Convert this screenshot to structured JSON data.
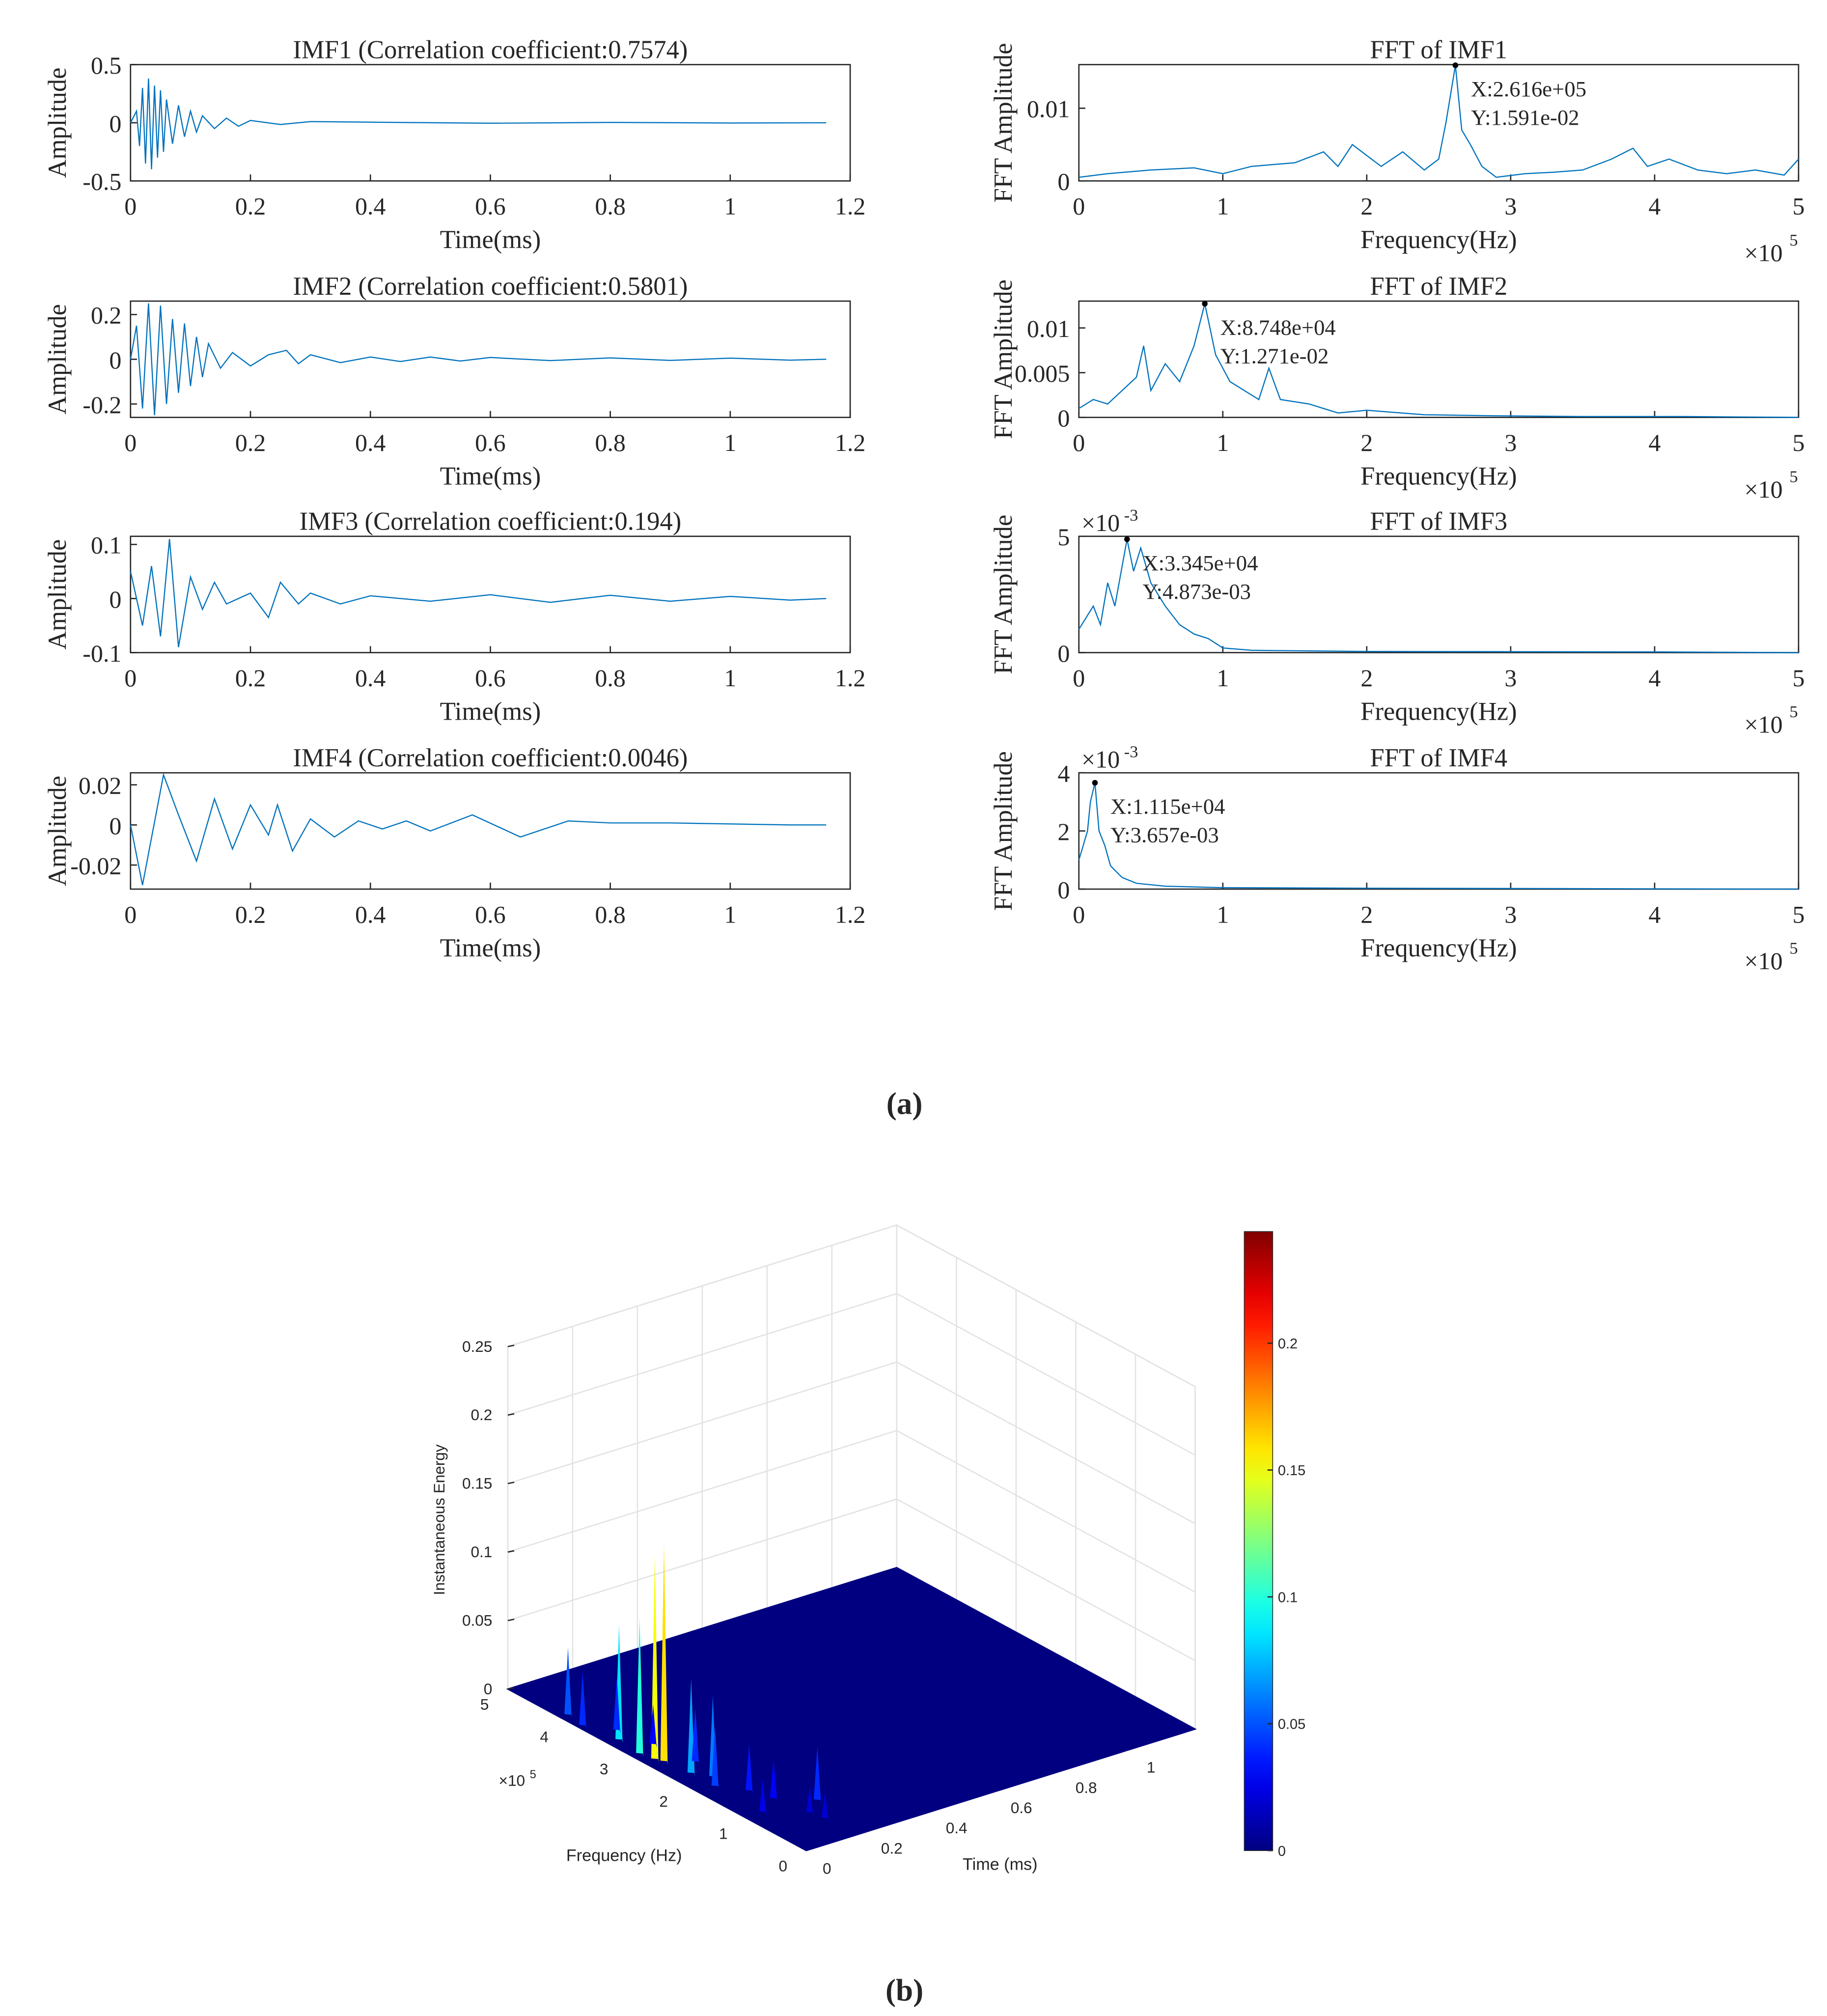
{
  "panel_labels": [
    "(a)",
    "(b)"
  ],
  "chart_data": [
    {
      "type": "line",
      "title": "IMF1 (Correlation coefficient:0.7574)",
      "xlabel": "Time(ms)",
      "ylabel": "Amplitude",
      "color": "#0072bd",
      "x": [
        0,
        0.01,
        0.015,
        0.02,
        0.025,
        0.03,
        0.035,
        0.04,
        0.045,
        0.05,
        0.055,
        0.06,
        0.07,
        0.08,
        0.09,
        0.1,
        0.11,
        0.12,
        0.14,
        0.16,
        0.18,
        0.2,
        0.25,
        0.3,
        0.4,
        0.6,
        0.8,
        1.0,
        1.16
      ],
      "values": [
        0,
        0.1,
        -0.2,
        0.3,
        -0.35,
        0.38,
        -0.4,
        0.32,
        -0.3,
        0.28,
        -0.25,
        0.2,
        -0.18,
        0.15,
        -0.12,
        0.1,
        -0.08,
        0.06,
        -0.05,
        0.04,
        -0.03,
        0.02,
        -0.015,
        0.01,
        0.005,
        -0.004,
        0.003,
        -0.002,
        0
      ],
      "xlim": [
        0,
        1.2
      ],
      "ylim": [
        -0.5,
        0.5
      ],
      "xticks": [
        0,
        0.2,
        0.4,
        0.6,
        0.8,
        1,
        1.2
      ],
      "yticks": [
        -0.5,
        0,
        0.5
      ]
    },
    {
      "type": "line",
      "title": "IMF2 (Correlation coefficient:0.5801)",
      "xlabel": "Time(ms)",
      "ylabel": "Amplitude",
      "color": "#0072bd",
      "x": [
        0,
        0.01,
        0.02,
        0.03,
        0.04,
        0.05,
        0.06,
        0.07,
        0.08,
        0.09,
        0.1,
        0.11,
        0.12,
        0.13,
        0.15,
        0.17,
        0.2,
        0.23,
        0.26,
        0.28,
        0.3,
        0.35,
        0.4,
        0.45,
        0.5,
        0.55,
        0.6,
        0.7,
        0.8,
        0.9,
        1.0,
        1.1,
        1.16
      ],
      "values": [
        0,
        0.15,
        -0.22,
        0.25,
        -0.25,
        0.24,
        -0.2,
        0.18,
        -0.15,
        0.16,
        -0.12,
        0.1,
        -0.08,
        0.07,
        -0.04,
        0.03,
        -0.03,
        0.02,
        0.04,
        -0.02,
        0.02,
        -0.015,
        0.01,
        -0.01,
        0.01,
        -0.008,
        0.008,
        -0.006,
        0.006,
        -0.005,
        0.005,
        -0.004,
        0
      ],
      "xlim": [
        0,
        1.2
      ],
      "ylim": [
        -0.26,
        0.26
      ],
      "xticks": [
        0,
        0.2,
        0.4,
        0.6,
        0.8,
        1,
        1.2
      ],
      "yticks": [
        -0.2,
        0,
        0.2
      ]
    },
    {
      "type": "line",
      "title": "IMF3 (Correlation coefficient:0.194)",
      "xlabel": "Time(ms)",
      "ylabel": "Amplitude",
      "color": "#0072bd",
      "x": [
        0,
        0.02,
        0.035,
        0.05,
        0.065,
        0.08,
        0.1,
        0.12,
        0.14,
        0.16,
        0.2,
        0.23,
        0.25,
        0.28,
        0.3,
        0.35,
        0.4,
        0.5,
        0.6,
        0.7,
        0.8,
        0.9,
        1.0,
        1.1,
        1.16
      ],
      "values": [
        0.05,
        -0.05,
        0.06,
        -0.07,
        0.11,
        -0.09,
        0.04,
        -0.02,
        0.03,
        -0.01,
        0.01,
        -0.035,
        0.03,
        -0.01,
        0.01,
        -0.01,
        0.005,
        -0.005,
        0.007,
        -0.007,
        0.006,
        -0.005,
        0.004,
        -0.003,
        0
      ],
      "xlim": [
        0,
        1.2
      ],
      "ylim": [
        -0.1,
        0.115
      ],
      "xticks": [
        0,
        0.2,
        0.4,
        0.6,
        0.8,
        1,
        1.2
      ],
      "yticks": [
        -0.1,
        0,
        0.1
      ]
    },
    {
      "type": "line",
      "title": "IMF4 (Correlation coefficient:0.0046)",
      "xlabel": "Time(ms)",
      "ylabel": "Amplitude",
      "color": "#0072bd",
      "x": [
        0,
        0.02,
        0.055,
        0.08,
        0.11,
        0.14,
        0.17,
        0.2,
        0.23,
        0.245,
        0.27,
        0.3,
        0.34,
        0.38,
        0.42,
        0.46,
        0.5,
        0.57,
        0.65,
        0.73,
        0.8,
        0.9,
        1.0,
        1.1,
        1.16
      ],
      "values": [
        0,
        -0.03,
        0.025,
        0.005,
        -0.018,
        0.013,
        -0.012,
        0.01,
        -0.005,
        0.01,
        -0.013,
        0.003,
        -0.006,
        0.002,
        -0.002,
        0.002,
        -0.003,
        0.005,
        -0.006,
        0.002,
        0.001,
        0.001,
        0.0005,
        0,
        0
      ],
      "xlim": [
        0,
        1.2
      ],
      "ylim": [
        -0.032,
        0.026
      ],
      "xticks": [
        0,
        0.2,
        0.4,
        0.6,
        0.8,
        1,
        1.2
      ],
      "yticks": [
        -0.02,
        0,
        0.02
      ]
    },
    {
      "type": "line",
      "title": "FFT of IMF1",
      "xlabel": "Frequency(Hz)",
      "ylabel": "FFT Amplitude",
      "color": "#0072bd",
      "x": [
        0,
        20000,
        50000,
        80000,
        100000,
        120000,
        150000,
        170000,
        180000,
        190000,
        210000,
        225000,
        240000,
        250000,
        255000,
        261600,
        266000,
        272000,
        280000,
        290000,
        310000,
        330000,
        350000,
        370000,
        385000,
        395000,
        410000,
        430000,
        450000,
        470000,
        490000,
        500000
      ],
      "values": [
        0.0005,
        0.001,
        0.0015,
        0.0018,
        0.001,
        0.002,
        0.0025,
        0.004,
        0.002,
        0.005,
        0.002,
        0.004,
        0.0015,
        0.003,
        0.008,
        0.01591,
        0.007,
        0.005,
        0.002,
        0.0005,
        0.001,
        0.0012,
        0.0015,
        0.003,
        0.0045,
        0.002,
        0.003,
        0.0015,
        0.001,
        0.0015,
        0.0008,
        0.003
      ],
      "xlim": [
        0,
        500000
      ],
      "ylim": [
        0,
        0.016
      ],
      "xticks": [
        0,
        {
          "value": 100000,
          "label": "1"
        },
        {
          "value": 200000,
          "label": "2"
        },
        {
          "value": 300000,
          "label": "3"
        },
        {
          "value": 400000,
          "label": "4"
        },
        {
          "value": 500000,
          "label": "5"
        }
      ],
      "yticks": [
        0,
        0.01
      ],
      "x_multiplier": {
        "base": "×10",
        "exponent": "5"
      },
      "annotations": [
        {
          "x": 261600,
          "y": 0.01591,
          "x_text": "X:2.616e+05",
          "y_text": "Y:1.591e-02"
        }
      ]
    },
    {
      "type": "line",
      "title": "FFT of IMF2",
      "xlabel": "Frequency(Hz)",
      "ylabel": "FFT Amplitude",
      "color": "#0072bd",
      "x": [
        0,
        10000,
        20000,
        30000,
        40000,
        45000,
        50000,
        60000,
        70000,
        80000,
        87480,
        95000,
        105000,
        115000,
        125000,
        132000,
        140000,
        160000,
        180000,
        200000,
        240000,
        280000,
        350000,
        420000,
        500000
      ],
      "values": [
        0.001,
        0.002,
        0.0015,
        0.003,
        0.0045,
        0.008,
        0.003,
        0.006,
        0.004,
        0.008,
        0.01271,
        0.007,
        0.004,
        0.003,
        0.002,
        0.0055,
        0.002,
        0.0015,
        0.0005,
        0.0008,
        0.0003,
        0.0002,
        0.0001,
        0.0001,
        0
      ],
      "xlim": [
        0,
        500000
      ],
      "ylim": [
        0,
        0.013
      ],
      "xticks": [
        0,
        {
          "value": 100000,
          "label": "1"
        },
        {
          "value": 200000,
          "label": "2"
        },
        {
          "value": 300000,
          "label": "3"
        },
        {
          "value": 400000,
          "label": "4"
        },
        {
          "value": 500000,
          "label": "5"
        }
      ],
      "yticks": [
        0,
        0.005,
        0.01
      ],
      "x_multiplier": {
        "base": "×10",
        "exponent": "5"
      },
      "annotations": [
        {
          "x": 87480,
          "y": 0.01271,
          "x_text": "X:8.748e+04",
          "y_text": "Y:1.271e-02"
        }
      ]
    },
    {
      "type": "line",
      "title": "FFT of IMF3",
      "xlabel": "Frequency(Hz)",
      "ylabel": "FFT Amplitude",
      "color": "#0072bd",
      "x": [
        0,
        5000,
        10000,
        15000,
        20000,
        25000,
        33450,
        38000,
        43000,
        50000,
        55000,
        60000,
        70000,
        80000,
        90000,
        100000,
        120000,
        150000,
        200000,
        300000,
        400000,
        500000
      ],
      "values": [
        0.001,
        0.0015,
        0.002,
        0.0012,
        0.003,
        0.002,
        0.004873,
        0.0035,
        0.0045,
        0.003,
        0.0025,
        0.002,
        0.0012,
        0.0008,
        0.0006,
        0.0002,
        0.0001,
        8e-05,
        5e-05,
        4e-05,
        3e-05,
        0
      ],
      "xlim": [
        0,
        500000
      ],
      "ylim": [
        0,
        0.005
      ],
      "xticks": [
        0,
        {
          "value": 100000,
          "label": "1"
        },
        {
          "value": 200000,
          "label": "2"
        },
        {
          "value": 300000,
          "label": "3"
        },
        {
          "value": 400000,
          "label": "4"
        },
        {
          "value": 500000,
          "label": "5"
        }
      ],
      "yticks": [
        0,
        {
          "value": 0.005,
          "label": "5"
        }
      ],
      "x_multiplier": {
        "base": "×10",
        "exponent": "5"
      },
      "y_multiplier": {
        "base": "×10",
        "exponent": "-3"
      },
      "annotations": [
        {
          "x": 33450,
          "y": 0.004873,
          "x_text": "X:3.345e+04",
          "y_text": "Y:4.873e-03"
        }
      ]
    },
    {
      "type": "line",
      "title": "FFT of IMF4",
      "xlabel": "Frequency(Hz)",
      "ylabel": "FFT Amplitude",
      "color": "#0072bd",
      "x": [
        0,
        3000,
        6000,
        8000,
        11150,
        14000,
        18000,
        22000,
        30000,
        40000,
        60000,
        100000,
        200000,
        500000
      ],
      "values": [
        0.001,
        0.0015,
        0.002,
        0.003,
        0.003657,
        0.002,
        0.0015,
        0.0008,
        0.0004,
        0.0002,
        0.0001,
        5e-05,
        3e-05,
        0
      ],
      "xlim": [
        0,
        500000
      ],
      "ylim": [
        0,
        0.004
      ],
      "xticks": [
        0,
        {
          "value": 100000,
          "label": "1"
        },
        {
          "value": 200000,
          "label": "2"
        },
        {
          "value": 300000,
          "label": "3"
        },
        {
          "value": 400000,
          "label": "4"
        },
        {
          "value": 500000,
          "label": "5"
        }
      ],
      "yticks": [
        0,
        {
          "value": 0.002,
          "label": "2"
        },
        {
          "value": 0.004,
          "label": "4"
        }
      ],
      "x_multiplier": {
        "base": "×10",
        "exponent": "5"
      },
      "y_multiplier": {
        "base": "×10",
        "exponent": "-3"
      },
      "annotations": [
        {
          "x": 11150,
          "y": 0.003657,
          "x_text": "X:1.115e+04",
          "y_text": "Y:3.657e-03"
        }
      ]
    },
    {
      "type": "surface3d",
      "xlabel": "Time (ms)",
      "ylabel": "Frequency (Hz)",
      "zlabel": "Instantaneous Energy",
      "colormap": "jet",
      "x": [
        0.04,
        0.03,
        0.02,
        0.03,
        0.05,
        0.08,
        0.05,
        0.01,
        0.02,
        0.06,
        0.1,
        0.12,
        0.2,
        0.15,
        0.1,
        0.05,
        0.08,
        0.14
      ],
      "y": [
        260000,
        270000,
        290000,
        330000,
        220000,
        200000,
        180000,
        380000,
        410000,
        350000,
        150000,
        120000,
        90000,
        50000,
        240000,
        100000,
        300000,
        70000
      ],
      "z": [
        0.16,
        0.15,
        0.1,
        0.085,
        0.07,
        0.06,
        0.045,
        0.04,
        0.05,
        0.04,
        0.035,
        0.03,
        0.04,
        0.02,
        0.04,
        0.025,
        0.03,
        0.02
      ],
      "xlim": [
        0,
        1.2
      ],
      "ylim": [
        0,
        500000
      ],
      "zlim": [
        0,
        0.25
      ],
      "xticks": [
        0,
        0.2,
        0.4,
        0.6,
        0.8,
        1
      ],
      "yticks": [
        0,
        {
          "value": 100000,
          "label": "1"
        },
        {
          "value": 200000,
          "label": "2"
        },
        {
          "value": 300000,
          "label": "3"
        },
        {
          "value": 400000,
          "label": "4"
        },
        {
          "value": 500000,
          "label": "5"
        }
      ],
      "zticks": [
        0,
        0.05,
        0.1,
        0.15,
        0.2,
        0.25
      ],
      "y_multiplier": {
        "base": "×10",
        "exponent": "5"
      },
      "grid": true,
      "colorbar": {
        "lim": [
          0,
          0.244
        ],
        "ticks": [
          0,
          0.05,
          0.1,
          0.15,
          0.2
        ]
      }
    }
  ]
}
